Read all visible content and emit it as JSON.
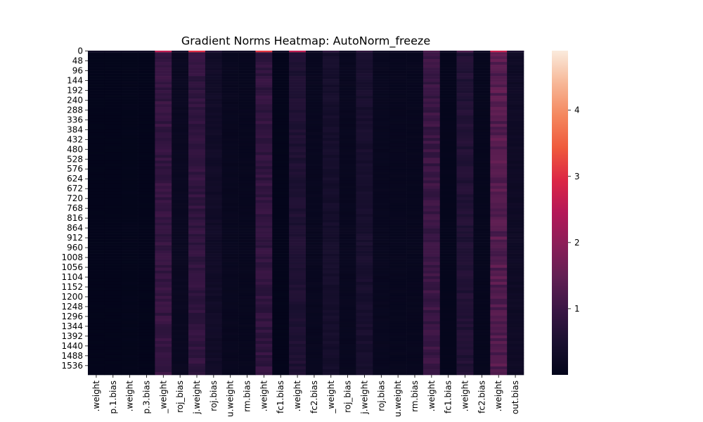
{
  "chart_data": {
    "type": "heatmap",
    "title": "Gradient Norms Heatmap: AutoNorm_freeze",
    "xlabel": "",
    "ylabel": "",
    "x_tick_labels": [
      ".weight",
      "p.1.bias",
      ".weight",
      "p.3.bias",
      "_weight",
      "roj_bias",
      "j.weight",
      "roj.bias",
      "u.weight",
      "rm.bias",
      ".weight",
      "fc1.bias",
      ".weight",
      "fc2.bias",
      "_weight",
      "roj_bias",
      "j.weight",
      "roj.bias",
      "u.weight",
      "rm.bias",
      ".weight",
      "fc1.bias",
      ".weight",
      "fc2.bias",
      ".weight",
      "out.bias"
    ],
    "y_tick_labels": [
      "0",
      "48",
      "96",
      "144",
      "192",
      "240",
      "288",
      "336",
      "384",
      "432",
      "480",
      "528",
      "576",
      "624",
      "672",
      "720",
      "768",
      "816",
      "864",
      "912",
      "960",
      "1008",
      "1056",
      "1104",
      "1152",
      "1200",
      "1248",
      "1296",
      "1344",
      "1392",
      "1440",
      "1488",
      "1536"
    ],
    "y_tick_values": [
      0,
      48,
      96,
      144,
      192,
      240,
      288,
      336,
      384,
      432,
      480,
      528,
      576,
      624,
      672,
      720,
      768,
      816,
      864,
      912,
      960,
      1008,
      1056,
      1104,
      1152,
      1200,
      1248,
      1296,
      1344,
      1392,
      1440,
      1488,
      1536
    ],
    "y_range": [
      0,
      1583
    ],
    "column_mean_values": [
      0.02,
      0.02,
      0.03,
      0.02,
      0.9,
      0.15,
      0.85,
      0.3,
      0.12,
      0.1,
      0.85,
      0.02,
      0.55,
      0.12,
      0.4,
      0.12,
      0.45,
      0.12,
      0.1,
      0.1,
      0.95,
      0.05,
      0.6,
      0.08,
      1.3,
      0.25
    ],
    "first_row_values": [
      0.3,
      0.3,
      0.3,
      0.3,
      2.6,
      0.4,
      3.0,
      0.6,
      0.3,
      0.3,
      3.1,
      0.3,
      2.6,
      0.3,
      0.8,
      0.3,
      0.8,
      0.3,
      0.3,
      0.3,
      1.2,
      0.3,
      1.2,
      0.3,
      2.7,
      0.5
    ],
    "colorbar": {
      "range": [
        0,
        4.9
      ],
      "tick_values": [
        1,
        2,
        3,
        4
      ],
      "tick_labels": [
        "1",
        "2",
        "3",
        "4"
      ],
      "colormap": "rocket"
    }
  }
}
